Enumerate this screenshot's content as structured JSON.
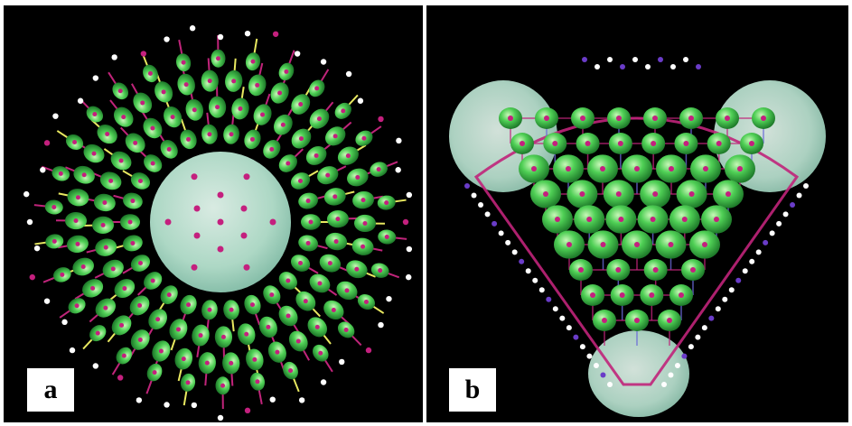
{
  "panels": [
    {
      "id": "a",
      "label": "a"
    },
    {
      "id": "b",
      "label": "b"
    }
  ],
  "colors": {
    "background": "#000000",
    "lobe_green": "#3fbf4a",
    "lobe_highlight": "#bff0b0",
    "surface_mint": "#bfe8d6",
    "bond_magenta": "#c0247a",
    "bond_yellow": "#e8e860",
    "bond_blue": "#6a6ad8",
    "atom_white": "#ffffff",
    "atom_magenta": "#c4207e",
    "atom_purple": "#6a3cc8"
  }
}
